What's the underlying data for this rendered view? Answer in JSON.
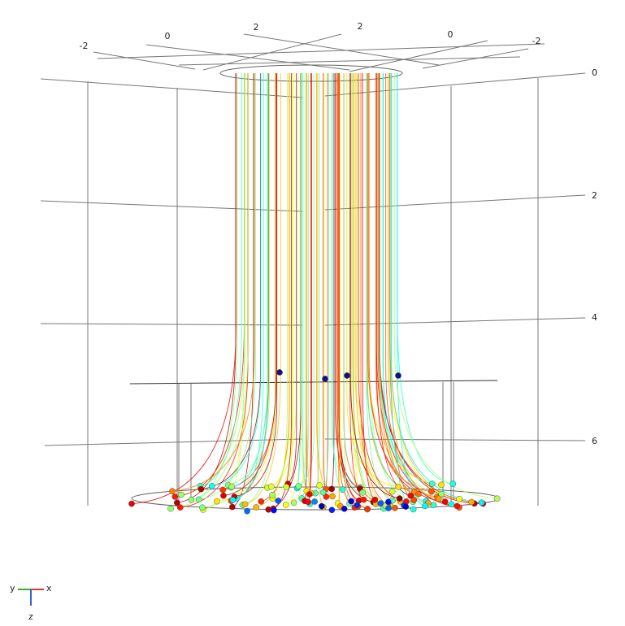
{
  "axes": {
    "top_labels": [
      "-2",
      "0",
      "2",
      "2",
      "0",
      "-2"
    ],
    "z_labels": [
      "0",
      "2",
      "4",
      "6"
    ]
  },
  "triad": {
    "y": "y",
    "x": "x",
    "z": "z"
  }
}
